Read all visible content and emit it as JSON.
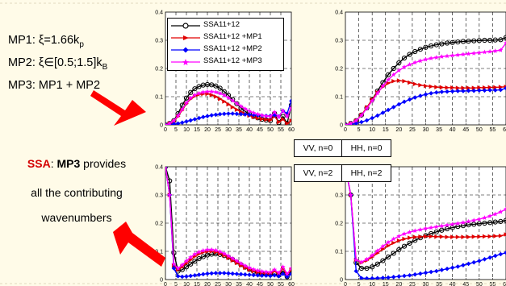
{
  "annotations": {
    "mp1_prefix": "MP1: ξ=1.66k",
    "mp1_sub": "p",
    "mp2_prefix": "MP2: ξ∈[0.5;1.5]k",
    "mp2_sub": "B",
    "mp3": "MP3: MP1 + MP2",
    "ssa_red": "SSA",
    "ssa_colon": ": ",
    "ssa_bold": "MP3",
    "ssa_rest": " provides",
    "line2": "all the contributing",
    "line3": "wavenumbers"
  },
  "labels": {
    "vv0": "VV, n=0",
    "hh0": "HH, n=0",
    "vv2": "VV, n=2",
    "hh2": "HH, n=2"
  },
  "colors": {
    "background": "#fffbe8",
    "arrow": "#ff0000",
    "ssa": "#000000",
    "mp1": "#e00000",
    "mp2": "#0000ff",
    "mp3": "#ff00ff"
  },
  "chart_data": [
    {
      "type": "line",
      "panel": "VV, n=0",
      "xlim": [
        0,
        60
      ],
      "ylim": [
        0,
        0.4
      ],
      "xticks": [
        0,
        5,
        10,
        15,
        20,
        25,
        30,
        35,
        40,
        45,
        50,
        55,
        60
      ],
      "yticks": [
        0,
        0.1,
        0.2,
        0.3,
        0.4
      ],
      "legend": "top-left",
      "x": [
        0,
        2,
        4,
        6,
        8,
        10,
        12,
        14,
        16,
        18,
        20,
        22,
        24,
        26,
        28,
        30,
        32,
        34,
        36,
        38,
        40,
        42,
        44,
        46,
        48,
        50,
        52,
        54,
        56,
        58,
        60
      ],
      "series": [
        {
          "name": "SSA11+12",
          "marker": "circle",
          "values": [
            0,
            0.005,
            0.015,
            0.04,
            0.07,
            0.095,
            0.115,
            0.128,
            0.136,
            0.141,
            0.143,
            0.142,
            0.138,
            0.13,
            0.118,
            0.105,
            0.09,
            0.075,
            0.06,
            0.048,
            0.038,
            0.03,
            0.025,
            0.02,
            0.017,
            0.015,
            0.04,
            0.008,
            0.03,
            0.005,
            0.07
          ]
        },
        {
          "name": "SSA11+12 +MP1",
          "marker": "triangle",
          "values": [
            0,
            0.005,
            0.012,
            0.03,
            0.052,
            0.075,
            0.092,
            0.102,
            0.108,
            0.11,
            0.11,
            0.106,
            0.1,
            0.092,
            0.083,
            0.073,
            0.063,
            0.054,
            0.046,
            0.039,
            0.033,
            0.028,
            0.024,
            0.021,
            0.019,
            0.017,
            0.03,
            0.01,
            0.02,
            0.005,
            0.015
          ]
        },
        {
          "name": "SSA11+12 +MP2",
          "marker": "diamond",
          "values": [
            0,
            0.001,
            0.003,
            0.005,
            0.008,
            0.012,
            0.016,
            0.02,
            0.024,
            0.028,
            0.031,
            0.034,
            0.036,
            0.038,
            0.039,
            0.04,
            0.04,
            0.039,
            0.038,
            0.037,
            0.036,
            0.035,
            0.034,
            0.033,
            0.032,
            0.032,
            0.034,
            0.03,
            0.05,
            0.04,
            0.085
          ]
        },
        {
          "name": "SSA11+12 +MP3",
          "marker": "star",
          "values": [
            0,
            0.005,
            0.015,
            0.032,
            0.055,
            0.078,
            0.095,
            0.106,
            0.112,
            0.116,
            0.118,
            0.118,
            0.116,
            0.112,
            0.105,
            0.096,
            0.086,
            0.076,
            0.066,
            0.057,
            0.049,
            0.043,
            0.038,
            0.034,
            0.031,
            0.03,
            0.045,
            0.028,
            0.05,
            0.03,
            0.06
          ]
        }
      ]
    },
    {
      "type": "line",
      "panel": "HH, n=0",
      "xlim": [
        0,
        60
      ],
      "ylim": [
        0,
        0.4
      ],
      "xticks": [
        0,
        5,
        10,
        15,
        20,
        25,
        30,
        35,
        40,
        45,
        50,
        55,
        60
      ],
      "yticks": [
        0,
        0.1,
        0.2,
        0.3,
        0.4
      ],
      "x": [
        0,
        2,
        4,
        6,
        8,
        10,
        12,
        14,
        16,
        18,
        20,
        22,
        24,
        26,
        28,
        30,
        32,
        34,
        36,
        38,
        40,
        42,
        44,
        46,
        48,
        50,
        52,
        54,
        56,
        58,
        60
      ],
      "series": [
        {
          "name": "SSA11+12",
          "values": [
            0,
            0.005,
            0.015,
            0.035,
            0.06,
            0.09,
            0.12,
            0.15,
            0.178,
            0.2,
            0.22,
            0.237,
            0.25,
            0.26,
            0.268,
            0.275,
            0.28,
            0.284,
            0.287,
            0.29,
            0.292,
            0.294,
            0.296,
            0.297,
            0.298,
            0.299,
            0.3,
            0.3,
            0.301,
            0.302,
            0.31
          ]
        },
        {
          "name": "SSA11+12 +MP1",
          "values": [
            0,
            0.005,
            0.015,
            0.035,
            0.062,
            0.09,
            0.115,
            0.135,
            0.148,
            0.155,
            0.157,
            0.155,
            0.15,
            0.145,
            0.141,
            0.138,
            0.136,
            0.134,
            0.133,
            0.132,
            0.132,
            0.131,
            0.131,
            0.131,
            0.131,
            0.132,
            0.132,
            0.133,
            0.133,
            0.134,
            0.135
          ]
        },
        {
          "name": "SSA11+12 +MP2",
          "values": [
            0,
            0.002,
            0.005,
            0.01,
            0.016,
            0.024,
            0.033,
            0.043,
            0.053,
            0.063,
            0.073,
            0.082,
            0.09,
            0.097,
            0.103,
            0.108,
            0.112,
            0.115,
            0.117,
            0.118,
            0.119,
            0.12,
            0.12,
            0.121,
            0.121,
            0.122,
            0.122,
            0.123,
            0.123,
            0.124,
            0.13
          ]
        },
        {
          "name": "SSA11+12 +MP3",
          "values": [
            0,
            0.005,
            0.015,
            0.034,
            0.058,
            0.085,
            0.112,
            0.138,
            0.16,
            0.178,
            0.193,
            0.205,
            0.214,
            0.221,
            0.227,
            0.232,
            0.236,
            0.239,
            0.242,
            0.244,
            0.246,
            0.248,
            0.25,
            0.252,
            0.254,
            0.256,
            0.258,
            0.26,
            0.262,
            0.265,
            0.29
          ]
        }
      ]
    },
    {
      "type": "line",
      "panel": "VV, n=2",
      "xlim": [
        0,
        60
      ],
      "ylim": [
        0,
        0.4
      ],
      "xticks": [
        0,
        5,
        10,
        15,
        20,
        25,
        30,
        35,
        40,
        45,
        50,
        55,
        60
      ],
      "yticks": [
        0,
        0.1,
        0.2,
        0.3,
        0.4
      ],
      "x": [
        0,
        2,
        4,
        6,
        8,
        10,
        12,
        14,
        16,
        18,
        20,
        22,
        24,
        26,
        28,
        30,
        32,
        34,
        36,
        38,
        40,
        42,
        44,
        46,
        48,
        50,
        52,
        54,
        56,
        58,
        60
      ],
      "series": [
        {
          "name": "SSA11+12",
          "values": [
            0.4,
            0.35,
            0.095,
            0.03,
            0.035,
            0.045,
            0.055,
            0.065,
            0.074,
            0.081,
            0.087,
            0.09,
            0.091,
            0.089,
            0.085,
            0.079,
            0.071,
            0.062,
            0.053,
            0.044,
            0.036,
            0.029,
            0.024,
            0.02,
            0.018,
            0.017,
            0.02,
            0.015,
            0.03,
            0.01,
            0.03
          ]
        },
        {
          "name": "SSA11+12 +MP1",
          "values": [
            0.4,
            0.3,
            0.05,
            0.035,
            0.045,
            0.058,
            0.07,
            0.082,
            0.091,
            0.097,
            0.1,
            0.1,
            0.098,
            0.093,
            0.086,
            0.077,
            0.068,
            0.059,
            0.05,
            0.042,
            0.035,
            0.03,
            0.026,
            0.023,
            0.021,
            0.02,
            0.03,
            0.018,
            0.04,
            0.015,
            0.035
          ]
        },
        {
          "name": "SSA11+12 +MP2",
          "values": [
            0.4,
            0.3,
            0.04,
            0.012,
            0.01,
            0.011,
            0.013,
            0.015,
            0.017,
            0.019,
            0.021,
            0.022,
            0.023,
            0.023,
            0.023,
            0.022,
            0.021,
            0.02,
            0.019,
            0.018,
            0.017,
            0.016,
            0.015,
            0.014,
            0.014,
            0.013,
            0.015,
            0.012,
            0.02,
            0.01,
            0.02
          ]
        },
        {
          "name": "SSA11+12 +MP3",
          "values": [
            0.4,
            0.3,
            0.055,
            0.04,
            0.052,
            0.066,
            0.079,
            0.09,
            0.098,
            0.103,
            0.106,
            0.106,
            0.104,
            0.099,
            0.092,
            0.084,
            0.075,
            0.066,
            0.057,
            0.049,
            0.042,
            0.036,
            0.032,
            0.029,
            0.027,
            0.026,
            0.035,
            0.024,
            0.045,
            0.02,
            0.04
          ]
        }
      ]
    },
    {
      "type": "line",
      "panel": "HH, n=2",
      "xlim": [
        0,
        60
      ],
      "ylim": [
        0,
        0.4
      ],
      "xticks": [
        0,
        5,
        10,
        15,
        20,
        25,
        30,
        35,
        40,
        45,
        50,
        55,
        60
      ],
      "yticks": [
        0,
        0.1,
        0.2,
        0.3,
        0.4
      ],
      "x": [
        0,
        2,
        4,
        6,
        8,
        10,
        12,
        14,
        16,
        18,
        20,
        22,
        24,
        26,
        28,
        30,
        32,
        34,
        36,
        38,
        40,
        42,
        44,
        46,
        48,
        50,
        52,
        54,
        56,
        58,
        60
      ],
      "series": [
        {
          "name": "SSA11+12",
          "values": [
            0.4,
            0.3,
            0.06,
            0.04,
            0.04,
            0.045,
            0.055,
            0.067,
            0.08,
            0.093,
            0.106,
            0.118,
            0.129,
            0.139,
            0.148,
            0.156,
            0.163,
            0.169,
            0.175,
            0.18,
            0.184,
            0.188,
            0.191,
            0.194,
            0.196,
            0.198,
            0.2,
            0.202,
            0.204,
            0.206,
            0.21
          ]
        },
        {
          "name": "SSA11+12 +MP1",
          "values": [
            0.4,
            0.3,
            0.07,
            0.06,
            0.068,
            0.08,
            0.094,
            0.108,
            0.12,
            0.13,
            0.138,
            0.144,
            0.148,
            0.151,
            0.152,
            0.153,
            0.153,
            0.152,
            0.152,
            0.151,
            0.151,
            0.151,
            0.151,
            0.151,
            0.152,
            0.152,
            0.153,
            0.153,
            0.154,
            0.155,
            0.16
          ]
        },
        {
          "name": "SSA11+12 +MP2",
          "values": [
            0.4,
            0.3,
            0.03,
            0.005,
            0.004,
            0.004,
            0.005,
            0.006,
            0.007,
            0.009,
            0.011,
            0.013,
            0.015,
            0.018,
            0.021,
            0.024,
            0.027,
            0.03,
            0.034,
            0.038,
            0.042,
            0.046,
            0.051,
            0.056,
            0.061,
            0.066,
            0.072,
            0.078,
            0.084,
            0.09,
            0.095
          ]
        },
        {
          "name": "SSA11+12 +MP3",
          "values": [
            0.4,
            0.3,
            0.07,
            0.062,
            0.072,
            0.086,
            0.102,
            0.118,
            0.132,
            0.144,
            0.154,
            0.162,
            0.168,
            0.173,
            0.177,
            0.181,
            0.184,
            0.187,
            0.19,
            0.193,
            0.196,
            0.199,
            0.202,
            0.206,
            0.21,
            0.214,
            0.219,
            0.225,
            0.232,
            0.24,
            0.25
          ]
        }
      ]
    }
  ]
}
